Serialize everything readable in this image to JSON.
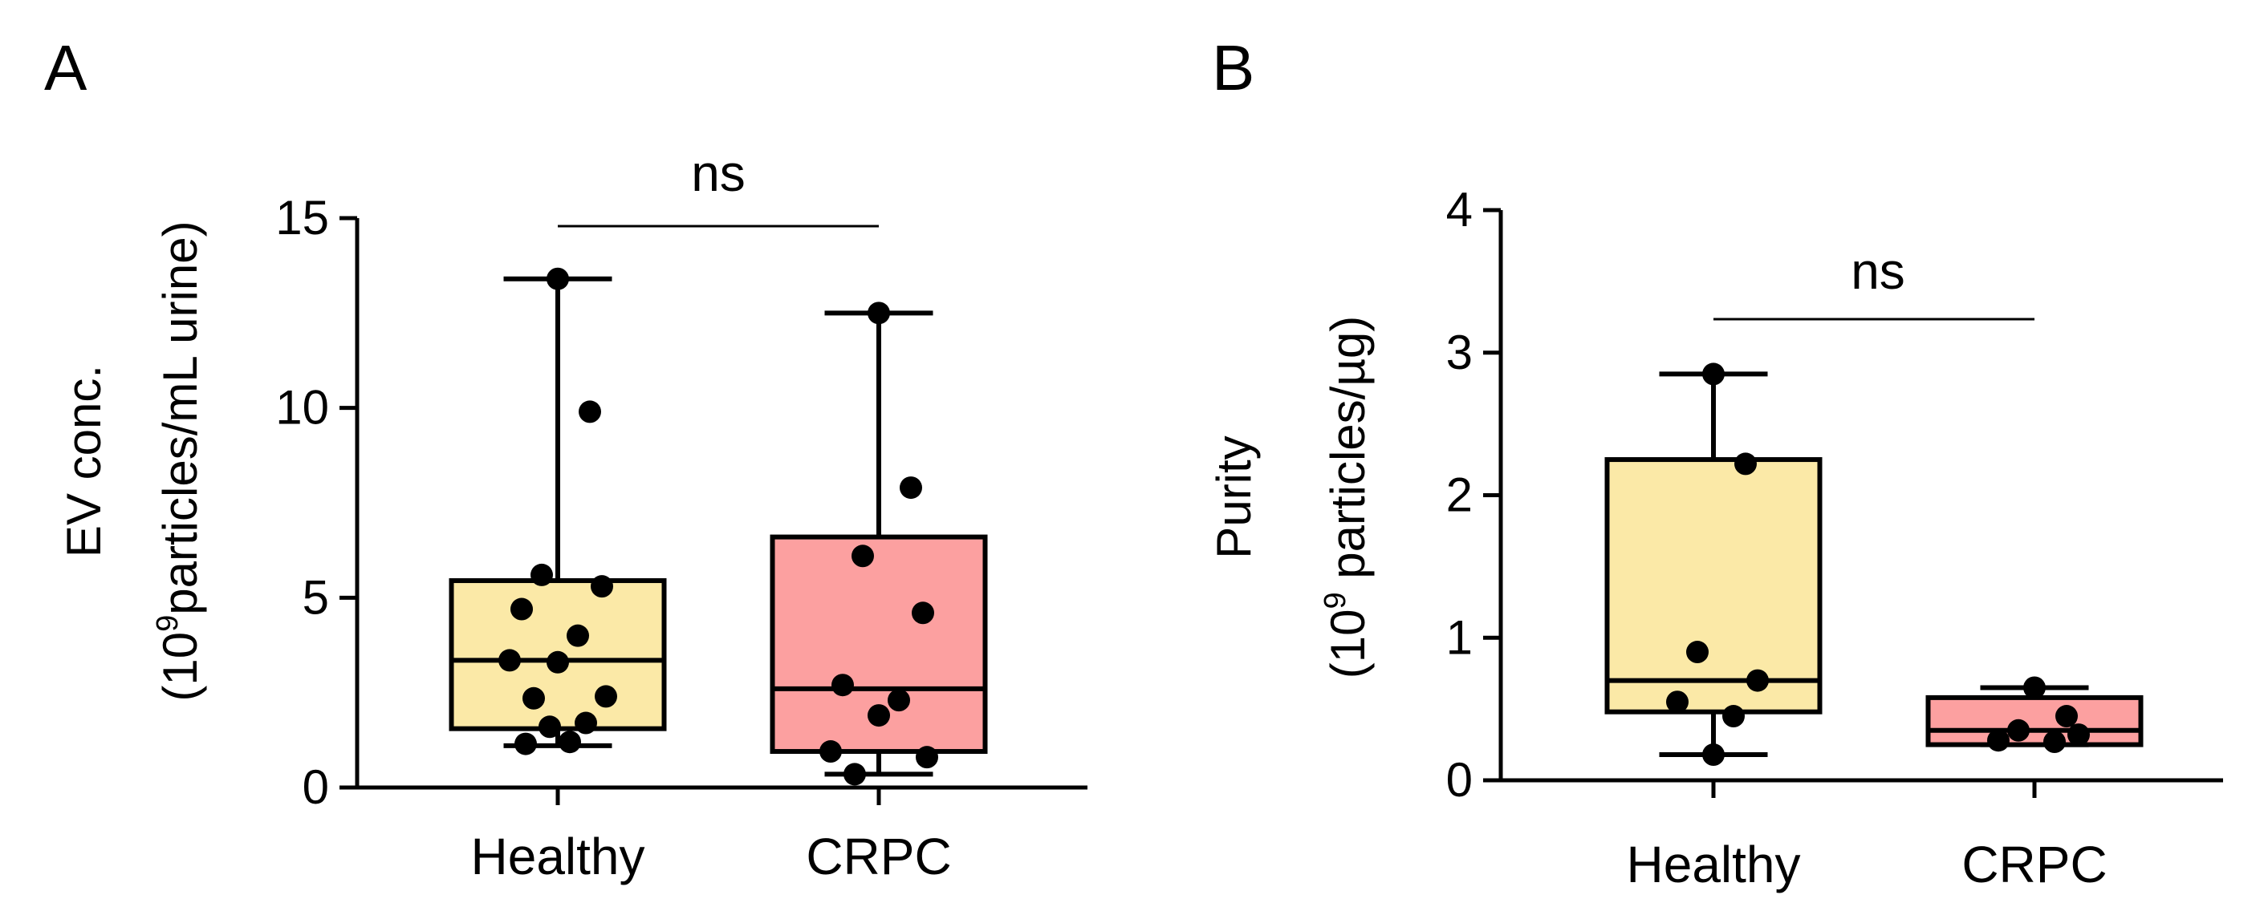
{
  "panels": [
    {
      "letter": "A",
      "ylabel_line1": "EV conc.",
      "ylabel_line2_pre": "(10",
      "ylabel_line2_sup": "9",
      "ylabel_line2_post": "particles/mL urine)",
      "significance": "ns"
    },
    {
      "letter": "B",
      "ylabel_line1": "Purity",
      "ylabel_line2_pre": "(10",
      "ylabel_line2_sup": "9",
      "ylabel_line2_post": " particles/µg)",
      "significance": "ns"
    }
  ],
  "colors": {
    "healthy_fill": "#fbe9a7",
    "crpc_fill": "#fca0a0",
    "stroke": "#000000"
  },
  "chart_data": [
    {
      "type": "box",
      "ylim": [
        0,
        15
      ],
      "yticks": [
        0,
        5,
        10,
        15
      ],
      "categories": [
        "Healthy",
        "CRPC"
      ],
      "boxes": [
        {
          "category": "Healthy",
          "min": 1.1,
          "q1": 1.55,
          "median": 3.35,
          "q3": 5.45,
          "max": 13.4,
          "points": [
            13.4,
            9.9,
            5.6,
            5.3,
            4.7,
            4.0,
            3.3,
            3.35,
            2.4,
            2.35,
            1.7,
            1.6,
            1.2,
            1.15
          ]
        },
        {
          "category": "CRPC",
          "min": 0.35,
          "q1": 0.95,
          "median": 2.6,
          "q3": 6.6,
          "max": 12.5,
          "points": [
            12.5,
            7.9,
            6.1,
            4.6,
            2.7,
            2.3,
            1.9,
            0.95,
            0.8,
            0.35
          ]
        }
      ],
      "significance": "ns"
    },
    {
      "type": "box",
      "ylim": [
        0,
        4
      ],
      "yticks": [
        0,
        1,
        2,
        3,
        4
      ],
      "categories": [
        "Healthy",
        "CRPC"
      ],
      "boxes": [
        {
          "category": "Healthy",
          "min": 0.18,
          "q1": 0.48,
          "median": 0.7,
          "q3": 2.25,
          "max": 2.85,
          "points": [
            2.85,
            2.22,
            0.9,
            0.7,
            0.55,
            0.45,
            0.18
          ]
        },
        {
          "category": "CRPC",
          "min": 0.25,
          "q1": 0.25,
          "median": 0.35,
          "q3": 0.58,
          "max": 0.65,
          "points": [
            0.65,
            0.45,
            0.35,
            0.32,
            0.28,
            0.27
          ]
        }
      ],
      "significance": "ns"
    }
  ]
}
